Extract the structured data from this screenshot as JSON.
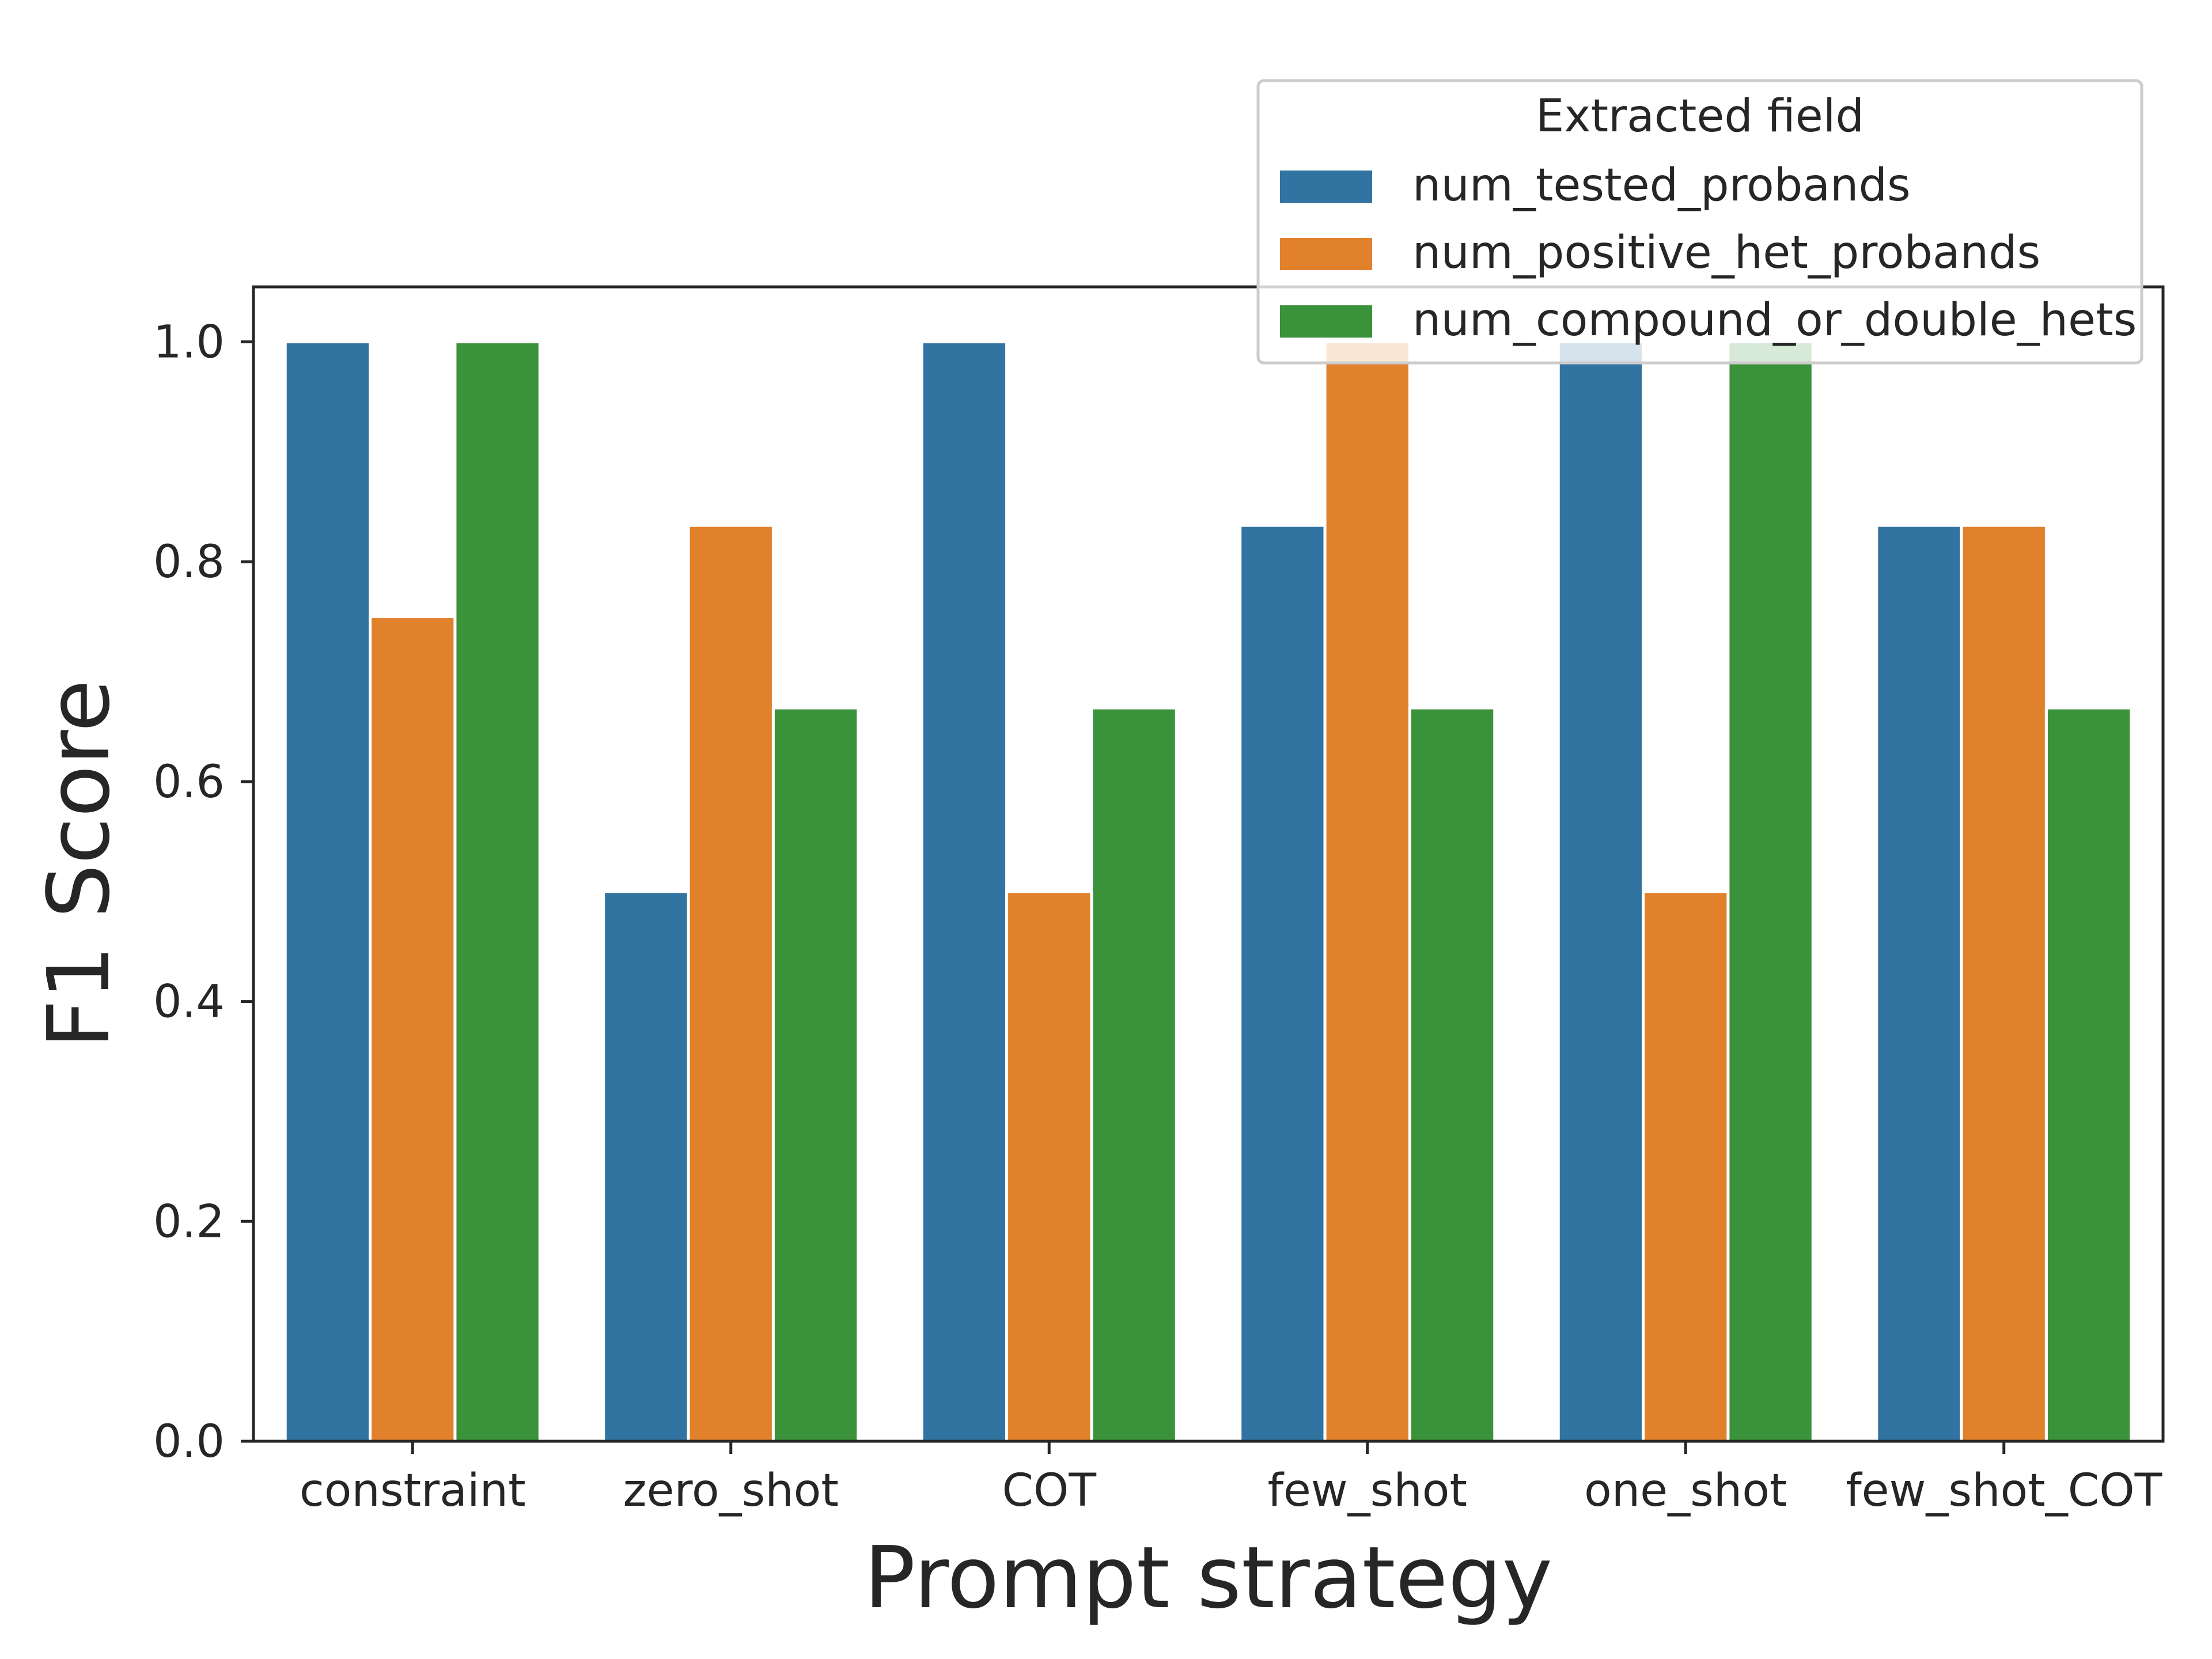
{
  "chart_data": {
    "type": "bar",
    "xlabel": "Prompt strategy",
    "ylabel": "F1 Score",
    "ylim": [
      0,
      1.05
    ],
    "yticks": [
      "0.0",
      "0.2",
      "0.4",
      "0.6",
      "0.8",
      "1.0"
    ],
    "categories": [
      "constraint",
      "zero_shot",
      "COT",
      "few_shot",
      "one_shot",
      "few_shot_COT"
    ],
    "legend": {
      "title": "Extracted field",
      "placement": "top-right"
    },
    "series": [
      {
        "name": "num_tested_probands",
        "color": "#3274a1",
        "values": [
          1.0,
          0.5,
          1.0,
          0.833,
          1.0,
          0.833
        ]
      },
      {
        "name": "num_positive_het_probands",
        "color": "#e1812c",
        "values": [
          0.75,
          0.833,
          0.5,
          1.0,
          0.5,
          0.833
        ]
      },
      {
        "name": "num_compound_or_double_hets",
        "color": "#3a923a",
        "values": [
          1.0,
          0.667,
          0.667,
          0.667,
          1.0,
          0.667
        ]
      }
    ]
  }
}
